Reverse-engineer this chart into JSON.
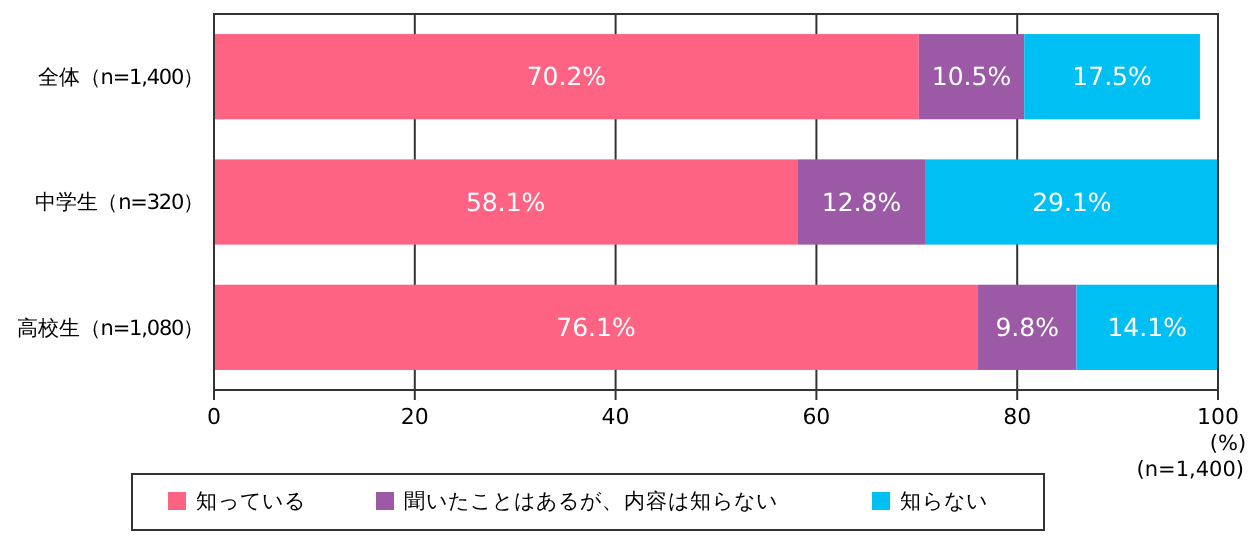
{
  "chart_data": {
    "type": "bar",
    "orientation": "horizontal",
    "stacked": true,
    "categories": [
      "全体（n=1,400）",
      "中学生（n=320）",
      "高校生（n=1,080）"
    ],
    "series": [
      {
        "name": "知っている",
        "color": "#ff6384",
        "values": [
          70.2,
          58.1,
          76.1
        ],
        "value_labels": [
          "70.2%",
          "58.1%",
          "76.1%"
        ]
      },
      {
        "name": "聞いたことはあるが、内容は知らない",
        "color": "#9b59a6",
        "values": [
          10.5,
          12.8,
          9.8
        ],
        "value_labels": [
          "10.5%",
          "12.8%",
          "9.8%"
        ]
      },
      {
        "name": "知らない",
        "color": "#00bff3",
        "values": [
          17.5,
          29.1,
          14.1
        ],
        "value_labels": [
          "17.5%",
          "29.1%",
          "14.1%"
        ]
      }
    ],
    "xlim": [
      0,
      100
    ],
    "xticks": [
      0,
      20,
      40,
      60,
      80,
      100
    ],
    "xlabel": "(%)",
    "annotations": [
      "(n=1,400)"
    ],
    "grid": "x",
    "legend": "bottom"
  }
}
